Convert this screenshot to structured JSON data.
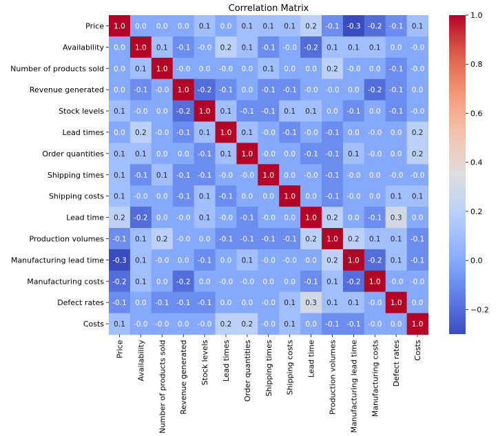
{
  "chart_data": {
    "type": "heatmap",
    "title": "Correlation Matrix",
    "row_labels": [
      "Price",
      "Availability",
      "Number of products sold",
      "Revenue generated",
      "Stock levels",
      "Lead times",
      "Order quantities",
      "Shipping times",
      "Shipping costs",
      "Lead time",
      "Production volumes",
      "Manufacturing lead time",
      "Manufacturing costs",
      "Defect rates",
      "Costs"
    ],
    "col_labels": [
      "Price",
      "Availability",
      "Number of products sold",
      "Revenue generated",
      "Stock levels",
      "Lead times",
      "Order quantities",
      "Shipping times",
      "Shipping costs",
      "Lead time",
      "Production volumes",
      "Manufacturing lead time",
      "Manufacturing costs",
      "Defect rates",
      "Costs"
    ],
    "values": [
      [
        1.0,
        0.0,
        0.0,
        0.0,
        0.1,
        0.0,
        0.1,
        0.1,
        0.1,
        0.2,
        -0.1,
        -0.3,
        -0.2,
        -0.1,
        0.1
      ],
      [
        0.0,
        1.0,
        0.1,
        -0.1,
        -0.0,
        0.2,
        0.1,
        -0.1,
        -0.0,
        -0.2,
        0.1,
        0.1,
        0.1,
        0.0,
        -0.0
      ],
      [
        0.0,
        0.1,
        1.0,
        -0.0,
        0.0,
        -0.0,
        0.0,
        0.1,
        0.0,
        0.0,
        0.2,
        -0.0,
        0.0,
        -0.1,
        -0.0
      ],
      [
        0.0,
        -0.1,
        -0.0,
        1.0,
        -0.2,
        -0.1,
        0.0,
        -0.1,
        -0.1,
        -0.0,
        -0.0,
        0.0,
        -0.2,
        -0.1,
        0.0
      ],
      [
        0.1,
        -0.0,
        0.0,
        -0.2,
        1.0,
        0.1,
        -0.1,
        -0.1,
        0.1,
        0.1,
        0.0,
        -0.1,
        0.0,
        -0.1,
        -0.0
      ],
      [
        0.0,
        0.2,
        -0.0,
        -0.1,
        0.1,
        1.0,
        0.1,
        -0.0,
        -0.1,
        -0.0,
        -0.1,
        0.0,
        -0.0,
        0.0,
        0.2
      ],
      [
        0.1,
        0.1,
        0.0,
        0.0,
        -0.1,
        0.1,
        1.0,
        -0.0,
        0.0,
        -0.1,
        -0.1,
        0.1,
        -0.0,
        0.0,
        0.2
      ],
      [
        0.1,
        -0.1,
        0.1,
        -0.1,
        -0.1,
        -0.0,
        -0.0,
        1.0,
        0.0,
        -0.0,
        -0.1,
        -0.0,
        0.0,
        -0.0,
        -0.0
      ],
      [
        0.1,
        -0.0,
        0.0,
        -0.1,
        0.1,
        -0.1,
        0.0,
        0.0,
        1.0,
        0.0,
        -0.1,
        -0.0,
        0.0,
        0.1,
        0.1
      ],
      [
        0.2,
        -0.2,
        0.0,
        -0.0,
        0.1,
        -0.0,
        -0.1,
        -0.0,
        0.0,
        1.0,
        0.2,
        0.0,
        -0.1,
        0.3,
        0.0
      ],
      [
        -0.1,
        0.1,
        0.2,
        -0.0,
        0.0,
        -0.1,
        -0.1,
        -0.1,
        -0.1,
        0.2,
        1.0,
        0.2,
        0.1,
        0.1,
        -0.1
      ],
      [
        -0.3,
        0.1,
        -0.0,
        0.0,
        -0.1,
        0.0,
        0.1,
        -0.0,
        -0.0,
        0.0,
        0.2,
        1.0,
        -0.2,
        0.1,
        -0.1
      ],
      [
        -0.2,
        0.1,
        0.0,
        -0.2,
        0.0,
        -0.0,
        -0.0,
        0.0,
        0.0,
        -0.1,
        0.1,
        -0.2,
        1.0,
        -0.0,
        -0.0
      ],
      [
        -0.1,
        0.0,
        -0.1,
        -0.1,
        -0.1,
        0.0,
        0.0,
        -0.0,
        0.1,
        0.3,
        0.1,
        0.1,
        -0.0,
        1.0,
        0.0
      ],
      [
        0.1,
        -0.0,
        -0.0,
        0.0,
        -0.0,
        0.2,
        0.2,
        -0.0,
        0.1,
        0.0,
        -0.1,
        -0.1,
        -0.0,
        0.0,
        1.0
      ]
    ],
    "display_labels": [
      [
        "1.0",
        "0.0",
        "0.0",
        "0.0",
        "0.1",
        "0.0",
        "0.1",
        "0.1",
        "0.1",
        "0.2",
        "-0.1",
        "-0.3",
        "-0.2",
        "-0.1",
        "0.1"
      ],
      [
        "0.0",
        "1.0",
        "0.1",
        "-0.1",
        "-0.0",
        "0.2",
        "0.1",
        "-0.1",
        "-0.0",
        "-0.2",
        "0.1",
        "0.1",
        "0.1",
        "0.0",
        "-0.0"
      ],
      [
        "0.0",
        "0.1",
        "1.0",
        "-0.0",
        "0.0",
        "-0.0",
        "0.0",
        "0.1",
        "0.0",
        "0.0",
        "0.2",
        "-0.0",
        "0.0",
        "-0.1",
        "-0.0"
      ],
      [
        "0.0",
        "-0.1",
        "-0.0",
        "1.0",
        "-0.2",
        "-0.1",
        "0.0",
        "-0.1",
        "-0.1",
        "-0.0",
        "-0.0",
        "0.0",
        "-0.2",
        "-0.1",
        "0.0"
      ],
      [
        "0.1",
        "-0.0",
        "0.0",
        "-0.2",
        "1.0",
        "0.1",
        "-0.1",
        "-0.1",
        "0.1",
        "0.1",
        "0.0",
        "-0.1",
        "0.0",
        "-0.1",
        "-0.0"
      ],
      [
        "0.0",
        "0.2",
        "-0.0",
        "-0.1",
        "0.1",
        "1.0",
        "0.1",
        "-0.0",
        "-0.1",
        "-0.0",
        "-0.1",
        "0.0",
        "-0.0",
        "0.0",
        "0.2"
      ],
      [
        "0.1",
        "0.1",
        "0.0",
        "0.0",
        "-0.1",
        "0.1",
        "1.0",
        "-0.0",
        "0.0",
        "-0.1",
        "-0.1",
        "0.1",
        "-0.0",
        "0.0",
        "0.2"
      ],
      [
        "0.1",
        "-0.1",
        "0.1",
        "-0.1",
        "-0.1",
        "-0.0",
        "-0.0",
        "1.0",
        "0.0",
        "-0.0",
        "-0.1",
        "-0.0",
        "0.0",
        "-0.0",
        "-0.0"
      ],
      [
        "0.1",
        "-0.0",
        "0.0",
        "-0.1",
        "0.1",
        "-0.1",
        "0.0",
        "0.0",
        "1.0",
        "0.0",
        "-0.1",
        "-0.0",
        "0.0",
        "0.1",
        "0.1"
      ],
      [
        "0.2",
        "-0.2",
        "0.0",
        "-0.0",
        "0.1",
        "-0.0",
        "-0.1",
        "-0.0",
        "0.0",
        "1.0",
        "0.2",
        "0.0",
        "-0.1",
        "0.3",
        "0.0"
      ],
      [
        "-0.1",
        "0.1",
        "0.2",
        "-0.0",
        "0.0",
        "-0.1",
        "-0.1",
        "-0.1",
        "-0.1",
        "0.2",
        "1.0",
        "0.2",
        "0.1",
        "0.1",
        "-0.1"
      ],
      [
        "-0.3",
        "0.1",
        "-0.0",
        "0.0",
        "-0.1",
        "0.0",
        "0.1",
        "-0.0",
        "-0.0",
        "0.0",
        "0.2",
        "1.0",
        "-0.2",
        "0.1",
        "-0.1"
      ],
      [
        "-0.2",
        "0.1",
        "0.0",
        "-0.2",
        "0.0",
        "-0.0",
        "-0.0",
        "0.0",
        "0.0",
        "-0.1",
        "0.1",
        "-0.2",
        "1.0",
        "-0.0",
        "-0.0"
      ],
      [
        "-0.1",
        "0.0",
        "-0.1",
        "-0.1",
        "-0.1",
        "0.0",
        "0.0",
        "-0.0",
        "0.1",
        "0.3",
        "0.1",
        "0.1",
        "-0.0",
        "1.0",
        "0.0"
      ],
      [
        "0.1",
        "-0.0",
        "-0.0",
        "0.0",
        "-0.0",
        "0.2",
        "0.2",
        "-0.0",
        "0.1",
        "0.0",
        "-0.1",
        "-0.1",
        "-0.0",
        "0.0",
        "1.0"
      ]
    ],
    "colormap": "coolwarm",
    "vmin": -0.3,
    "vmax": 1.0,
    "colorbar_ticks": [
      "1.0",
      "0.8",
      "0.6",
      "0.4",
      "0.2",
      "0.0",
      "−0.2"
    ],
    "colorbar_tick_values": [
      1.0,
      0.8,
      0.6,
      0.4,
      0.2,
      0.0,
      -0.2
    ],
    "xlabel": "",
    "ylabel": "",
    "grid": false
  }
}
